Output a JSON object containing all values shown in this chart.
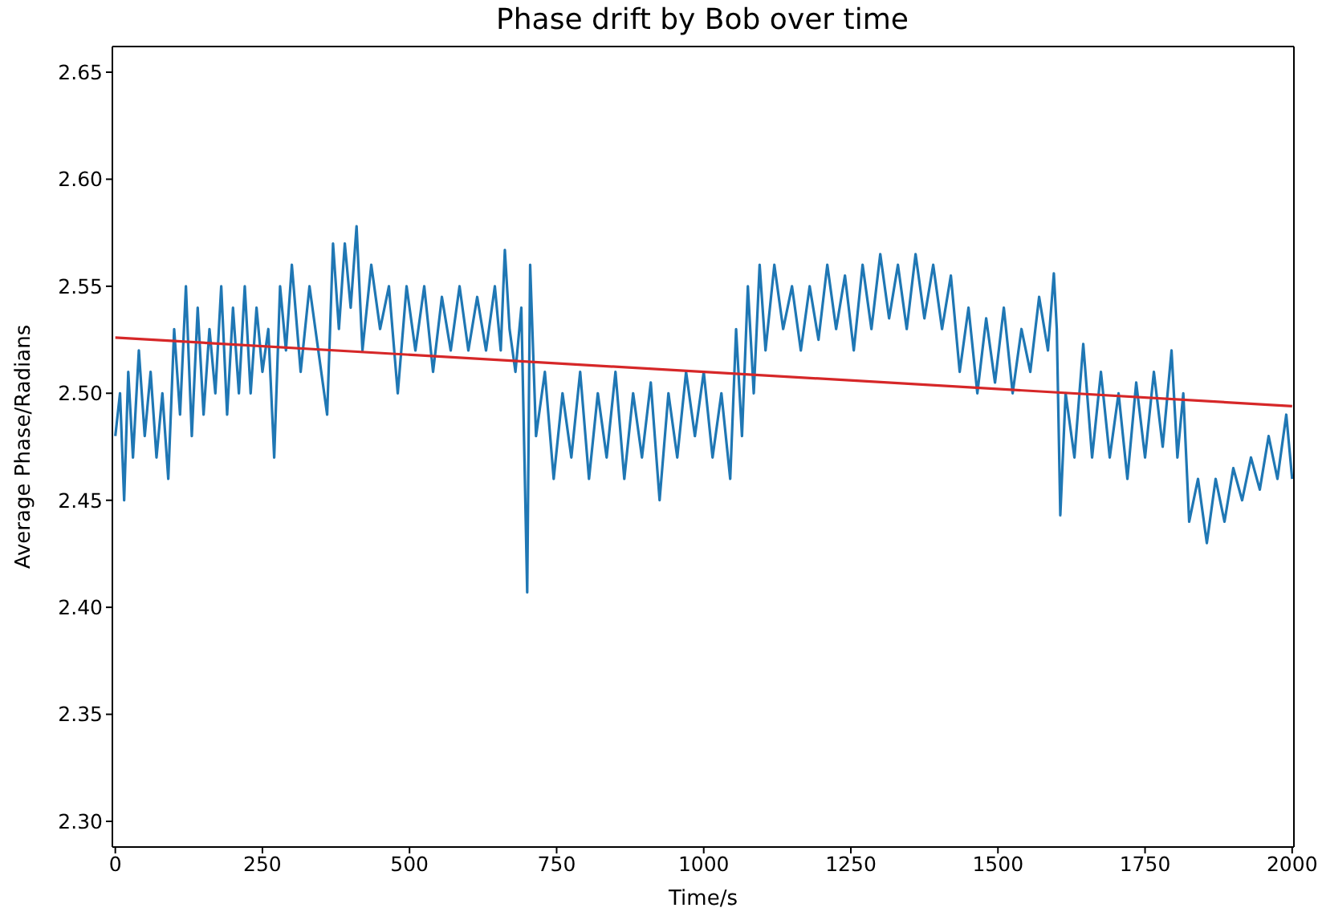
{
  "chart_data": {
    "type": "line",
    "title": "Phase drift by Bob over time",
    "xlabel": "Time/s",
    "ylabel": "Average Phase/Radians",
    "xlim": [
      -5,
      2003
    ],
    "ylim": [
      2.288,
      2.662
    ],
    "xticks": [
      0,
      250,
      500,
      750,
      1000,
      1250,
      1500,
      1750,
      2000
    ],
    "yticks": [
      {
        "value": 2.3,
        "label": "2.30"
      },
      {
        "value": 2.35,
        "label": "2.35"
      },
      {
        "value": 2.4,
        "label": "2.40"
      },
      {
        "value": 2.45,
        "label": "2.45"
      },
      {
        "value": 2.5,
        "label": "2.50"
      },
      {
        "value": 2.55,
        "label": "2.55"
      },
      {
        "value": 2.6,
        "label": "2.60"
      },
      {
        "value": 2.65,
        "label": "2.65"
      }
    ],
    "series": [
      {
        "color": "#1f77b4",
        "x": [
          0,
          8,
          15,
          22,
          30,
          40,
          50,
          60,
          70,
          80,
          90,
          100,
          110,
          120,
          130,
          140,
          150,
          160,
          170,
          180,
          190,
          200,
          210,
          220,
          230,
          240,
          250,
          260,
          270,
          280,
          290,
          300,
          315,
          330,
          345,
          360,
          370,
          380,
          390,
          400,
          410,
          420,
          435,
          450,
          465,
          480,
          495,
          510,
          525,
          540,
          555,
          570,
          585,
          600,
          615,
          630,
          645,
          655,
          662,
          670,
          680,
          690,
          700,
          705,
          715,
          730,
          745,
          760,
          775,
          790,
          805,
          820,
          835,
          850,
          865,
          880,
          895,
          910,
          925,
          940,
          955,
          970,
          985,
          1000,
          1015,
          1030,
          1045,
          1055,
          1065,
          1075,
          1085,
          1095,
          1105,
          1120,
          1135,
          1150,
          1165,
          1180,
          1195,
          1210,
          1225,
          1240,
          1255,
          1270,
          1285,
          1300,
          1315,
          1330,
          1345,
          1360,
          1375,
          1390,
          1405,
          1420,
          1435,
          1450,
          1465,
          1480,
          1495,
          1510,
          1525,
          1540,
          1555,
          1570,
          1585,
          1595,
          1600,
          1606,
          1615,
          1630,
          1645,
          1660,
          1675,
          1690,
          1705,
          1720,
          1735,
          1750,
          1765,
          1780,
          1795,
          1805,
          1815,
          1825,
          1840,
          1855,
          1870,
          1885,
          1900,
          1915,
          1930,
          1945,
          1960,
          1975,
          1990,
          2000
        ],
        "values": [
          2.48,
          2.5,
          2.45,
          2.51,
          2.47,
          2.52,
          2.48,
          2.51,
          2.47,
          2.5,
          2.46,
          2.53,
          2.49,
          2.55,
          2.48,
          2.54,
          2.49,
          2.53,
          2.5,
          2.55,
          2.49,
          2.54,
          2.5,
          2.55,
          2.5,
          2.54,
          2.51,
          2.53,
          2.47,
          2.55,
          2.52,
          2.56,
          2.51,
          2.55,
          2.52,
          2.49,
          2.57,
          2.53,
          2.57,
          2.54,
          2.578,
          2.52,
          2.56,
          2.53,
          2.55,
          2.5,
          2.55,
          2.52,
          2.55,
          2.51,
          2.545,
          2.52,
          2.55,
          2.52,
          2.545,
          2.52,
          2.55,
          2.52,
          2.567,
          2.53,
          2.51,
          2.54,
          2.407,
          2.56,
          2.48,
          2.51,
          2.46,
          2.5,
          2.47,
          2.51,
          2.46,
          2.5,
          2.47,
          2.51,
          2.46,
          2.5,
          2.47,
          2.505,
          2.45,
          2.5,
          2.47,
          2.51,
          2.48,
          2.51,
          2.47,
          2.5,
          2.46,
          2.53,
          2.48,
          2.55,
          2.5,
          2.56,
          2.52,
          2.56,
          2.53,
          2.55,
          2.52,
          2.55,
          2.525,
          2.56,
          2.53,
          2.555,
          2.52,
          2.56,
          2.53,
          2.565,
          2.535,
          2.56,
          2.53,
          2.565,
          2.535,
          2.56,
          2.53,
          2.555,
          2.51,
          2.54,
          2.5,
          2.535,
          2.505,
          2.54,
          2.5,
          2.53,
          2.51,
          2.545,
          2.52,
          2.556,
          2.53,
          2.443,
          2.5,
          2.47,
          2.523,
          2.47,
          2.51,
          2.47,
          2.5,
          2.46,
          2.505,
          2.47,
          2.51,
          2.475,
          2.52,
          2.47,
          2.5,
          2.44,
          2.46,
          2.43,
          2.46,
          2.44,
          2.465,
          2.45,
          2.47,
          2.455,
          2.48,
          2.46,
          2.49,
          2.46
        ]
      },
      {
        "color": "#d62728",
        "x": [
          0,
          2000
        ],
        "values": [
          2.526,
          2.494
        ]
      }
    ]
  }
}
